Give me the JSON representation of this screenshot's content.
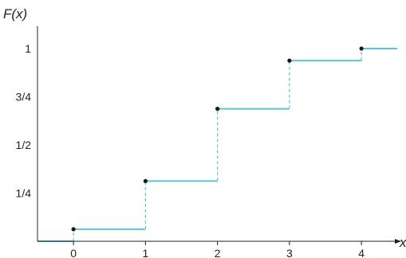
{
  "colors": {
    "step": "#5bc4d6",
    "axis": "#231f20",
    "dot": "#1a1a1a"
  },
  "chart_data": {
    "type": "line",
    "subtype": "step-function-cdf",
    "ylabel": "F(x)",
    "xlabel": "x",
    "xlim": [
      -0.5,
      4.5
    ],
    "ylim": [
      0,
      1
    ],
    "x_ticks": [
      {
        "value": 0,
        "label": "0"
      },
      {
        "value": 1,
        "label": "1"
      },
      {
        "value": 2,
        "label": "2"
      },
      {
        "value": 3,
        "label": "3"
      },
      {
        "value": 4,
        "label": "4"
      }
    ],
    "y_ticks": [
      {
        "value": 0.25,
        "label": "1/4"
      },
      {
        "value": 0.5,
        "label": "1/2"
      },
      {
        "value": 0.75,
        "label": "3/4"
      },
      {
        "value": 1,
        "label": "1"
      }
    ],
    "steps": [
      {
        "x_start": -0.5,
        "x_end": 0,
        "y": 0
      },
      {
        "x_start": 0,
        "x_end": 1,
        "y": 0.0625
      },
      {
        "x_start": 1,
        "x_end": 2,
        "y": 0.3125
      },
      {
        "x_start": 2,
        "x_end": 3,
        "y": 0.6875
      },
      {
        "x_start": 3,
        "x_end": 4,
        "y": 0.9375
      },
      {
        "x_start": 4,
        "x_end": 4.5,
        "y": 1
      }
    ],
    "grid": false,
    "legend": "none"
  }
}
